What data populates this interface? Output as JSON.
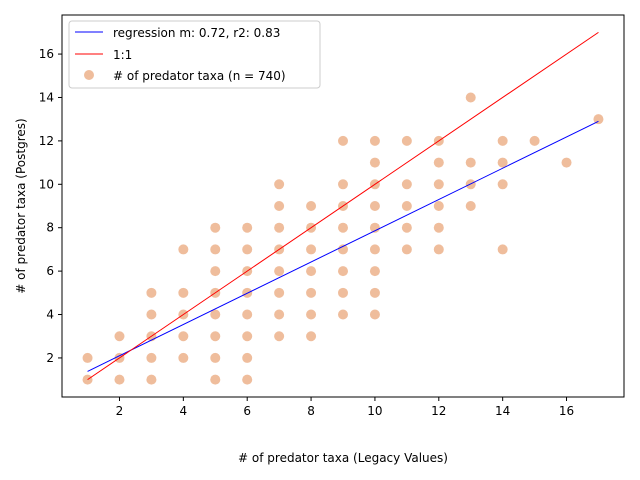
{
  "chart_data": {
    "type": "scatter",
    "xlabel": "# of predator taxa (Legacy Values)",
    "ylabel": "# of predator taxa (Postgres)",
    "xlim": [
      0.2,
      17.8
    ],
    "ylim": [
      0.2,
      17.8
    ],
    "xticks": [
      2,
      4,
      6,
      8,
      10,
      12,
      14,
      16
    ],
    "yticks": [
      2,
      4,
      6,
      8,
      10,
      12,
      14,
      16
    ],
    "xtick_labels": [
      "2",
      "4",
      "6",
      "8",
      "10",
      "12",
      "14",
      "16"
    ],
    "ytick_labels": [
      "2",
      "4",
      "6",
      "8",
      "10",
      "12",
      "14",
      "16"
    ],
    "grid": false,
    "legend_position": "upper-left",
    "series": [
      {
        "kind": "line",
        "name": "regression m: 0.72, r2: 0.83",
        "color": "#0000ff",
        "x": [
          1,
          17
        ],
        "y": [
          1.38,
          12.9
        ]
      },
      {
        "kind": "line",
        "name": "1:1",
        "color": "#ff0000",
        "x": [
          1,
          17
        ],
        "y": [
          1,
          17
        ]
      },
      {
        "kind": "scatter",
        "name": "# of predator taxa (n = 740)",
        "color": "#e07b39",
        "points": [
          [
            1,
            1
          ],
          [
            1,
            2
          ],
          [
            2,
            1
          ],
          [
            2,
            2
          ],
          [
            2,
            3
          ],
          [
            3,
            1
          ],
          [
            3,
            2
          ],
          [
            3,
            3
          ],
          [
            3,
            4
          ],
          [
            3,
            5
          ],
          [
            4,
            2
          ],
          [
            4,
            3
          ],
          [
            4,
            4
          ],
          [
            4,
            5
          ],
          [
            4,
            7
          ],
          [
            5,
            1
          ],
          [
            5,
            2
          ],
          [
            5,
            3
          ],
          [
            5,
            4
          ],
          [
            5,
            5
          ],
          [
            5,
            6
          ],
          [
            5,
            7
          ],
          [
            5,
            8
          ],
          [
            6,
            1
          ],
          [
            6,
            2
          ],
          [
            6,
            3
          ],
          [
            6,
            4
          ],
          [
            6,
            5
          ],
          [
            6,
            6
          ],
          [
            6,
            7
          ],
          [
            6,
            8
          ],
          [
            7,
            3
          ],
          [
            7,
            4
          ],
          [
            7,
            5
          ],
          [
            7,
            6
          ],
          [
            7,
            7
          ],
          [
            7,
            8
          ],
          [
            7,
            9
          ],
          [
            7,
            10
          ],
          [
            8,
            3
          ],
          [
            8,
            4
          ],
          [
            8,
            5
          ],
          [
            8,
            6
          ],
          [
            8,
            7
          ],
          [
            8,
            8
          ],
          [
            8,
            9
          ],
          [
            9,
            4
          ],
          [
            9,
            5
          ],
          [
            9,
            6
          ],
          [
            9,
            7
          ],
          [
            9,
            8
          ],
          [
            9,
            9
          ],
          [
            9,
            10
          ],
          [
            9,
            12
          ],
          [
            10,
            4
          ],
          [
            10,
            5
          ],
          [
            10,
            6
          ],
          [
            10,
            7
          ],
          [
            10,
            8
          ],
          [
            10,
            9
          ],
          [
            10,
            10
          ],
          [
            10,
            11
          ],
          [
            10,
            12
          ],
          [
            11,
            7
          ],
          [
            11,
            8
          ],
          [
            11,
            9
          ],
          [
            11,
            10
          ],
          [
            11,
            12
          ],
          [
            12,
            7
          ],
          [
            12,
            8
          ],
          [
            12,
            9
          ],
          [
            12,
            10
          ],
          [
            12,
            11
          ],
          [
            12,
            12
          ],
          [
            13,
            9
          ],
          [
            13,
            10
          ],
          [
            13,
            11
          ],
          [
            13,
            14
          ],
          [
            14,
            7
          ],
          [
            14,
            10
          ],
          [
            14,
            11
          ],
          [
            14,
            12
          ],
          [
            15,
            12
          ],
          [
            16,
            11
          ],
          [
            17,
            13
          ]
        ]
      }
    ]
  }
}
